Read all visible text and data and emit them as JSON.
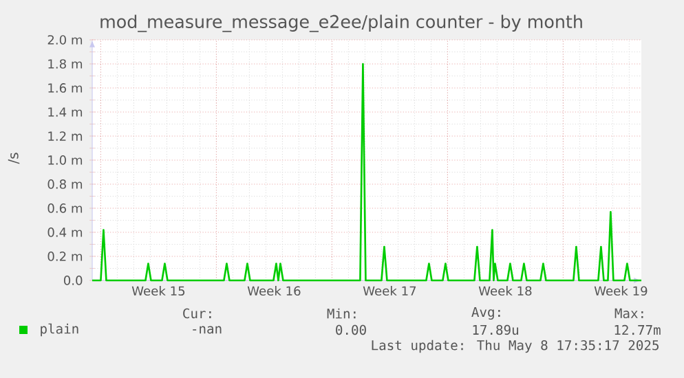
{
  "chart_data": {
    "type": "line",
    "title": "mod_measure_message_e2ee/plain counter - by month",
    "ylabel": "/s",
    "x": [
      "2025-04-05T11:35",
      "2025-04-06T00:00",
      "2025-04-06T04:00",
      "2025-04-06T08:00",
      "2025-04-08T17:00",
      "2025-04-08T21:00",
      "2025-04-09T01:00",
      "2025-04-09T17:00",
      "2025-04-09T21:00",
      "2025-04-10T01:00",
      "2025-04-13T11:00",
      "2025-04-13T15:00",
      "2025-04-13T19:00",
      "2025-04-14T17:00",
      "2025-04-14T21:00",
      "2025-04-15T01:00",
      "2025-04-16T11:00",
      "2025-04-16T15:00",
      "2025-04-16T18:00",
      "2025-04-16T21:00",
      "2025-04-17T01:00",
      "2025-04-21T17:00",
      "2025-04-21T21:00",
      "2025-04-22T01:00",
      "2025-04-23T00:00",
      "2025-04-23T04:00",
      "2025-04-23T08:00",
      "2025-04-25T17:00",
      "2025-04-25T21:00",
      "2025-04-26T01:00",
      "2025-04-26T17:00",
      "2025-04-26T21:00",
      "2025-04-27T01:00",
      "2025-04-28T15:00",
      "2025-04-28T19:00",
      "2025-04-28T23:00",
      "2025-04-29T13:00",
      "2025-04-29T17:00",
      "2025-04-29T19:00",
      "2025-04-29T21:00",
      "2025-04-30T01:00",
      "2025-04-30T15:00",
      "2025-04-30T19:00",
      "2025-04-30T23:00",
      "2025-05-01T11:00",
      "2025-05-01T15:00",
      "2025-05-01T19:00",
      "2025-05-02T15:00",
      "2025-05-02T19:00",
      "2025-05-02T23:00",
      "2025-05-04T15:00",
      "2025-05-04T19:00",
      "2025-05-04T23:00",
      "2025-05-06T03:00",
      "2025-05-06T07:00",
      "2025-05-06T11:00",
      "2025-05-06T17:00",
      "2025-05-06T21:00",
      "2025-05-07T01:00",
      "2025-05-07T17:00",
      "2025-05-07T21:00",
      "2025-05-08T01:00",
      "2025-05-08T17:35"
    ],
    "series": [
      {
        "name": "plain",
        "color": "#00cc00",
        "values": [
          0,
          0,
          0.42,
          0,
          0,
          0.14,
          0,
          0,
          0.14,
          0,
          0,
          0.14,
          0,
          0,
          0.14,
          0,
          0,
          0.14,
          0,
          0.14,
          0,
          0,
          1.8,
          0,
          0,
          0.28,
          0,
          0,
          0.14,
          0,
          0,
          0.14,
          0,
          0,
          0.28,
          0,
          0,
          0.42,
          0,
          0.14,
          0,
          0,
          0.14,
          0,
          0,
          0.14,
          0,
          0,
          0.14,
          0,
          0,
          0.28,
          0,
          0,
          0.28,
          0,
          0,
          0.57,
          0,
          0,
          0.14,
          0,
          0
        ]
      }
    ],
    "xlim": [
      "2025-04-05T11:35",
      "2025-05-08T17:35"
    ],
    "ylim": [
      0,
      2.0
    ],
    "xticks": [
      {
        "value": "2025-04-06",
        "label": null
      },
      {
        "value": "2025-04-09T12:00",
        "label": "Week 15"
      },
      {
        "value": "2025-04-13",
        "label": null
      },
      {
        "value": "2025-04-16T12:00",
        "label": "Week 16"
      },
      {
        "value": "2025-04-20",
        "label": null
      },
      {
        "value": "2025-04-23T12:00",
        "label": "Week 17"
      },
      {
        "value": "2025-04-27",
        "label": null
      },
      {
        "value": "2025-04-30T12:00",
        "label": "Week 18"
      },
      {
        "value": "2025-05-04",
        "label": null
      },
      {
        "value": "2025-05-07T12:00",
        "label": "Week 19"
      }
    ],
    "yticks": [
      {
        "value": 0,
        "label": "0.0"
      },
      {
        "value": 0.2,
        "label": "0.2 m"
      },
      {
        "value": 0.4,
        "label": "0.4 m"
      },
      {
        "value": 0.6,
        "label": "0.6 m"
      },
      {
        "value": 0.8,
        "label": "0.8 m"
      },
      {
        "value": 1.0,
        "label": "1.0 m"
      },
      {
        "value": 1.2,
        "label": "1.2 m"
      },
      {
        "value": 1.4,
        "label": "1.4 m"
      },
      {
        "value": 1.6,
        "label": "1.6 m"
      },
      {
        "value": 1.8,
        "label": "1.8 m"
      },
      {
        "value": 2.0,
        "label": "2.0 m"
      }
    ],
    "grid": true,
    "legend": "bottom",
    "marker": "none",
    "line_style": "solid",
    "annotations": [
      "Cur:",
      "Min:",
      "Avg:",
      "Max:",
      "-nan",
      "0.00",
      "17.89u",
      "12.77m",
      "Last update: Thu May 8 17:35:17 2025"
    ]
  }
}
